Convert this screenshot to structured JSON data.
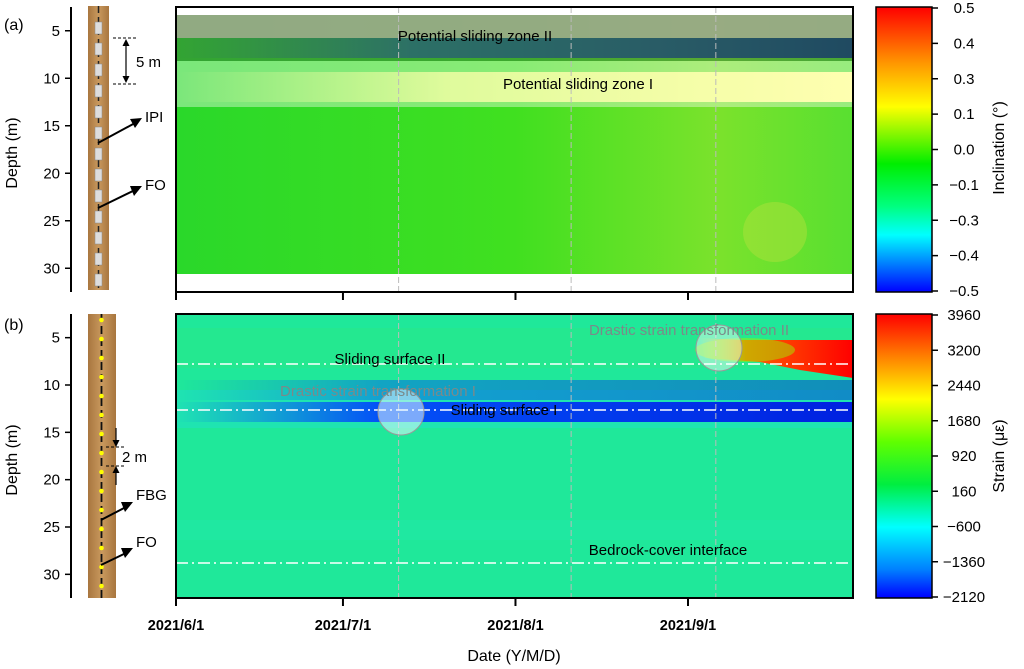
{
  "chart_data": [
    {
      "type": "heatmap",
      "panel_label": "(a)",
      "ylabel": "Depth (m)",
      "y_ticks": [
        5,
        10,
        15,
        20,
        25,
        30
      ],
      "ylim": [
        32.5,
        2.5
      ],
      "x_ticks": [
        "2021/6/1",
        "2021/7/1",
        "2021/8/1",
        "2021/9/1"
      ],
      "date_range": [
        "2021/6/1",
        "2021/9/30"
      ],
      "zones": [
        {
          "label": "Potential sliding zone II",
          "depth_from": 3,
          "depth_to": 7.5
        },
        {
          "label": "Potential sliding zone I",
          "depth_from": 7.5,
          "depth_to": 12.3
        }
      ],
      "sensor_annotations": [
        {
          "label": "5 m"
        },
        {
          "label": "IPI"
        },
        {
          "label": "FO"
        }
      ],
      "colorbar": {
        "label": "Inclination (°)",
        "ticks": [
          "0.5",
          "0.4",
          "0.3",
          "0.1",
          "0.0",
          "−0.1",
          "−0.3",
          "−0.4",
          "−0.5"
        ],
        "range": [
          -0.5,
          0.5
        ]
      },
      "features": [
        {
          "description": "negative inclination band",
          "depth": 5.2,
          "from": "2021/7/25",
          "to": "2021/9/30",
          "min_value": -0.45
        },
        {
          "description": "positive inclination band",
          "depth": 9.5,
          "from": "2021/7/1",
          "to": "2021/9/30",
          "max_value": 0.15
        }
      ],
      "data_depth_range": [
        3,
        30
      ]
    },
    {
      "type": "heatmap",
      "panel_label": "(b)",
      "ylabel": "Depth (m)",
      "y_ticks": [
        5,
        10,
        15,
        20,
        25,
        30
      ],
      "ylim": [
        32.5,
        2.5
      ],
      "x_ticks": [
        "2021/6/1",
        "2021/7/1",
        "2021/8/1",
        "2021/9/1"
      ],
      "xlabel": "Date (Y/M/D)",
      "surfaces": [
        {
          "label": "Sliding surface II",
          "depth": 7
        },
        {
          "label": "Sliding surface I",
          "depth": 12
        },
        {
          "label": "Bedrock-cover interface",
          "depth": 28
        }
      ],
      "transformations": [
        {
          "label": "Drastic strain transformation I",
          "date": "2021/7/11",
          "depth": 12
        },
        {
          "label": "Drastic strain transformation II",
          "date": "2021/9/6",
          "depth": 5.5
        }
      ],
      "sensor_annotations": [
        {
          "label": "2 m"
        },
        {
          "label": "FBG"
        },
        {
          "label": "FO"
        }
      ],
      "colorbar": {
        "label": "Strain (με)",
        "ticks": [
          "3960",
          "3200",
          "2440",
          "1680",
          "920",
          "160",
          "−600",
          "−1360",
          "−2120"
        ],
        "range": [
          -2120,
          3960
        ]
      },
      "features": [
        {
          "description": "compressive strain band",
          "depth": 12,
          "from": "2021/7/20",
          "to": "2021/9/30",
          "min_value": -1800
        },
        {
          "description": "tensile strain band",
          "depth": 6.5,
          "from": "2021/9/6",
          "to": "2021/9/30",
          "max_value": 3960
        }
      ]
    }
  ],
  "colors": {
    "red": "#ff0000",
    "orange": "#ff8000",
    "yellow": "#ffff00",
    "green": "#00e000",
    "cyan": "#00ffff",
    "blue": "#0040ff",
    "navy": "#00008b",
    "soil": "#b98a55"
  }
}
